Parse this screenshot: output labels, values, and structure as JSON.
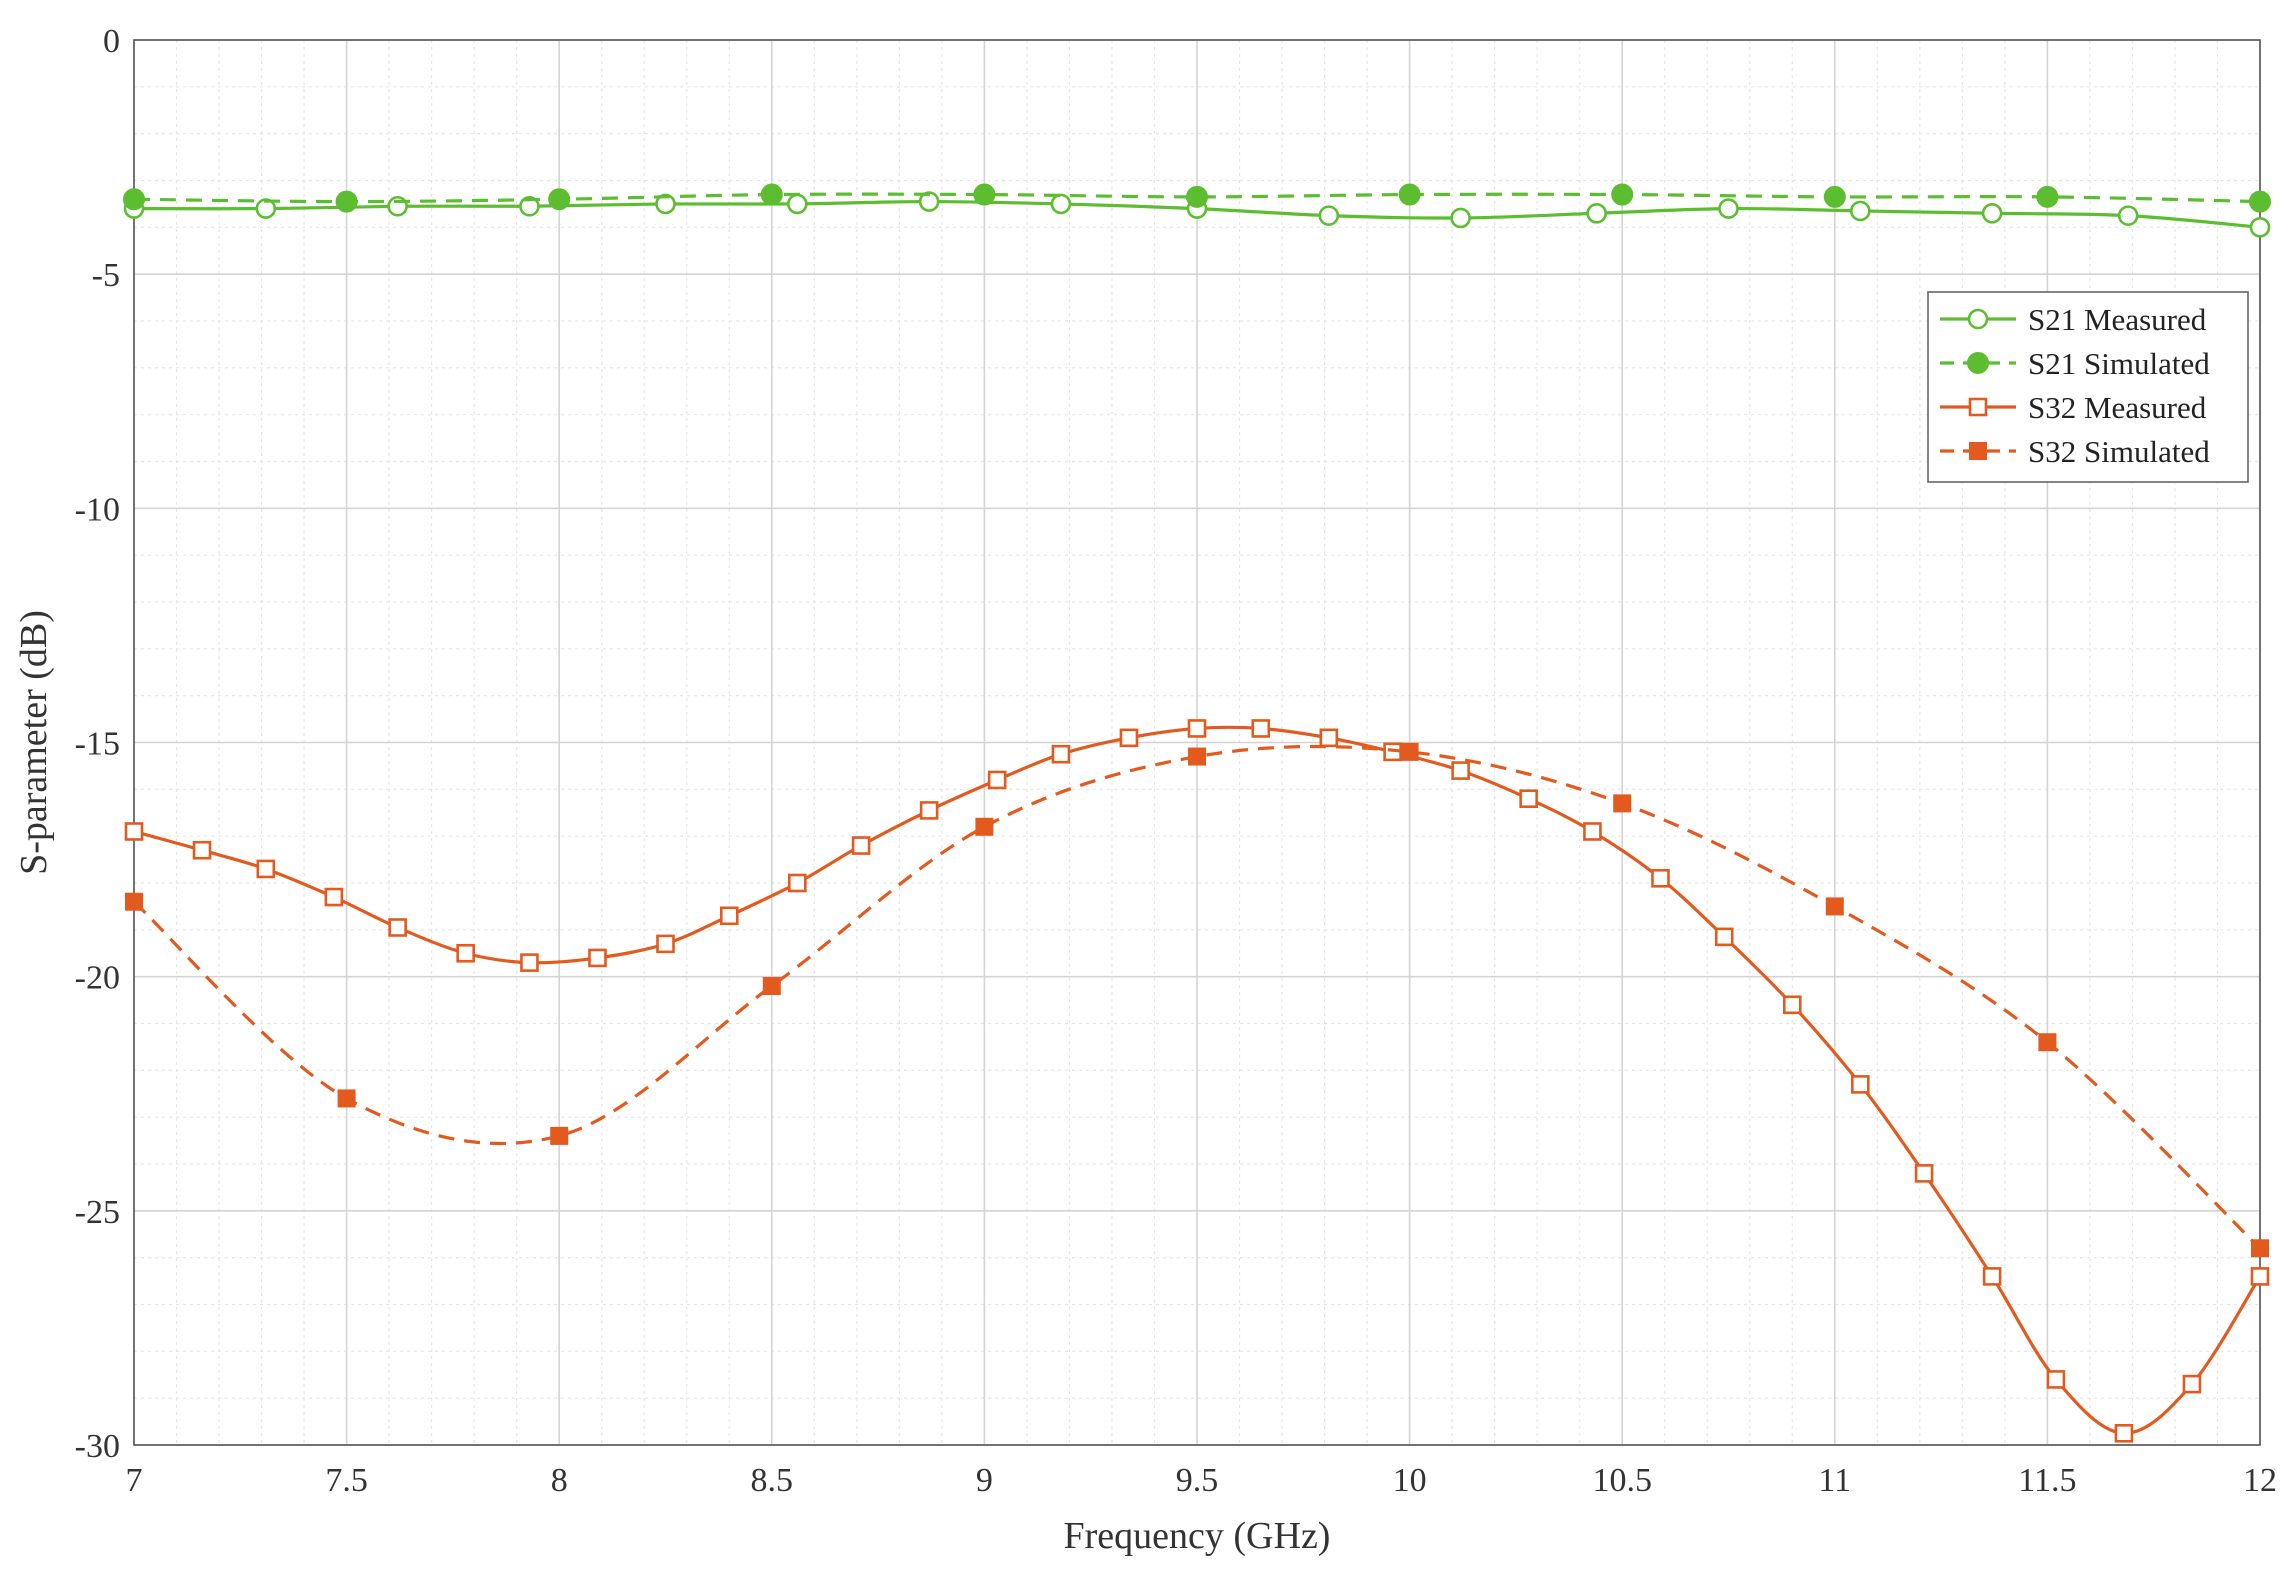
{
  "chart_data": {
    "type": "line",
    "xlabel": "Frequency (GHz)",
    "ylabel": "S-parameter (dB)",
    "xlim": [
      7,
      12
    ],
    "ylim": [
      -30,
      0
    ],
    "xticks": [
      "7",
      "7.5",
      "8",
      "8.5",
      "9",
      "9.5",
      "10",
      "10.5",
      "11",
      "11.5",
      "12"
    ],
    "yticks": [
      "0",
      "-5",
      "-10",
      "-15",
      "-20",
      "-25",
      "-30"
    ],
    "grid": true,
    "minor_grid": true,
    "legend_position": "top-right",
    "series": [
      {
        "name": "S21 Measured",
        "color": "#5cbd31",
        "line": "solid",
        "marker": "open-circle",
        "x": [
          7.0,
          7.31,
          7.62,
          7.93,
          8.25,
          8.56,
          8.87,
          9.18,
          9.5,
          9.81,
          10.12,
          10.44,
          10.75,
          11.06,
          11.37,
          11.69,
          12.0
        ],
        "y": [
          -3.6,
          -3.6,
          -3.55,
          -3.55,
          -3.5,
          -3.5,
          -3.45,
          -3.5,
          -3.6,
          -3.75,
          -3.8,
          -3.7,
          -3.6,
          -3.65,
          -3.7,
          -3.75,
          -4.0
        ]
      },
      {
        "name": "S21 Simulated",
        "color": "#5cbd31",
        "line": "dashed",
        "marker": "filled-circle",
        "x": [
          7.0,
          7.5,
          8.0,
          8.5,
          9.0,
          9.5,
          10.0,
          10.5,
          11.0,
          11.5,
          12.0
        ],
        "y": [
          -3.4,
          -3.45,
          -3.4,
          -3.3,
          -3.3,
          -3.35,
          -3.3,
          -3.3,
          -3.35,
          -3.35,
          -3.45
        ]
      },
      {
        "name": "S32 Measured",
        "color": "#e35a1f",
        "line": "solid",
        "marker": "open-square",
        "x": [
          7.0,
          7.16,
          7.31,
          7.47,
          7.62,
          7.78,
          7.93,
          8.09,
          8.25,
          8.4,
          8.56,
          8.71,
          8.87,
          9.03,
          9.18,
          9.34,
          9.5,
          9.65,
          9.81,
          9.96,
          10.12,
          10.28,
          10.43,
          10.59,
          10.74,
          10.9,
          11.06,
          11.21,
          11.37,
          11.52,
          11.68,
          11.84,
          12.0
        ],
        "y": [
          -16.9,
          -17.3,
          -17.7,
          -18.3,
          -18.95,
          -19.5,
          -19.7,
          -19.6,
          -19.3,
          -18.7,
          -18.0,
          -17.2,
          -16.45,
          -15.8,
          -15.25,
          -14.9,
          -14.7,
          -14.7,
          -14.9,
          -15.2,
          -15.6,
          -16.2,
          -16.9,
          -17.9,
          -19.15,
          -20.6,
          -22.3,
          -24.2,
          -26.4,
          -28.6,
          -29.75,
          -28.7,
          -26.4
        ]
      },
      {
        "name": "S32 Simulated",
        "color": "#e35a1f",
        "line": "dashed",
        "marker": "filled-square",
        "x": [
          7.0,
          7.5,
          8.0,
          8.5,
          9.0,
          9.5,
          10.0,
          10.5,
          11.0,
          11.5,
          12.0
        ],
        "y": [
          -18.4,
          -22.6,
          -23.4,
          -20.2,
          -16.8,
          -15.3,
          -15.2,
          -16.3,
          -18.5,
          -21.4,
          -25.8
        ]
      }
    ]
  }
}
